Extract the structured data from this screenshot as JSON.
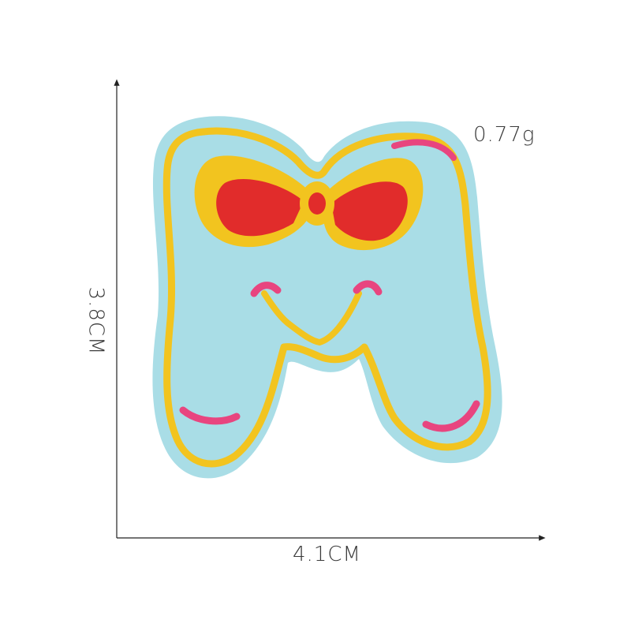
{
  "product_photo": {
    "subject": "embroidered-letter-m-patch",
    "colors": {
      "felt": "#a9dde6",
      "thread_gold": "#f2c41f",
      "thread_pink": "#e8457f",
      "thread_red": "#e12c2b"
    }
  },
  "labels": {
    "weight": "0.77g",
    "width": "4.1CM",
    "height": "3.8CM"
  }
}
